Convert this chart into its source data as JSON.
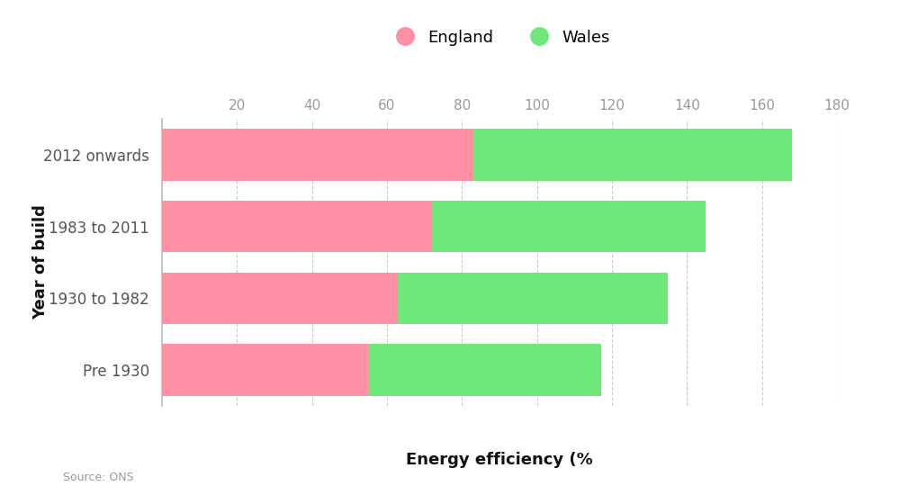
{
  "categories": [
    "2012 onwards",
    "1983 to 2011",
    "1930 to 1982",
    "Pre 1930"
  ],
  "england_values": [
    83,
    72,
    63,
    55
  ],
  "wales_values": [
    85,
    73,
    72,
    62
  ],
  "england_color": "#FF8FA3",
  "wales_color": "#6EE87A",
  "xlabel": "Energy efficiency (%",
  "ylabel": "Year of build",
  "xlim": [
    0,
    180
  ],
  "xticks": [
    20,
    40,
    60,
    80,
    100,
    120,
    140,
    160,
    180
  ],
  "legend_labels": [
    "England",
    "Wales"
  ],
  "source_text": "Source: ONS",
  "background_color": "#ffffff",
  "axis_line_color": "#bbbbbb",
  "grid_color": "#cccccc",
  "bar_height": 0.72,
  "tick_color": "#999999",
  "label_color": "#111111",
  "ytick_color": "#555555"
}
